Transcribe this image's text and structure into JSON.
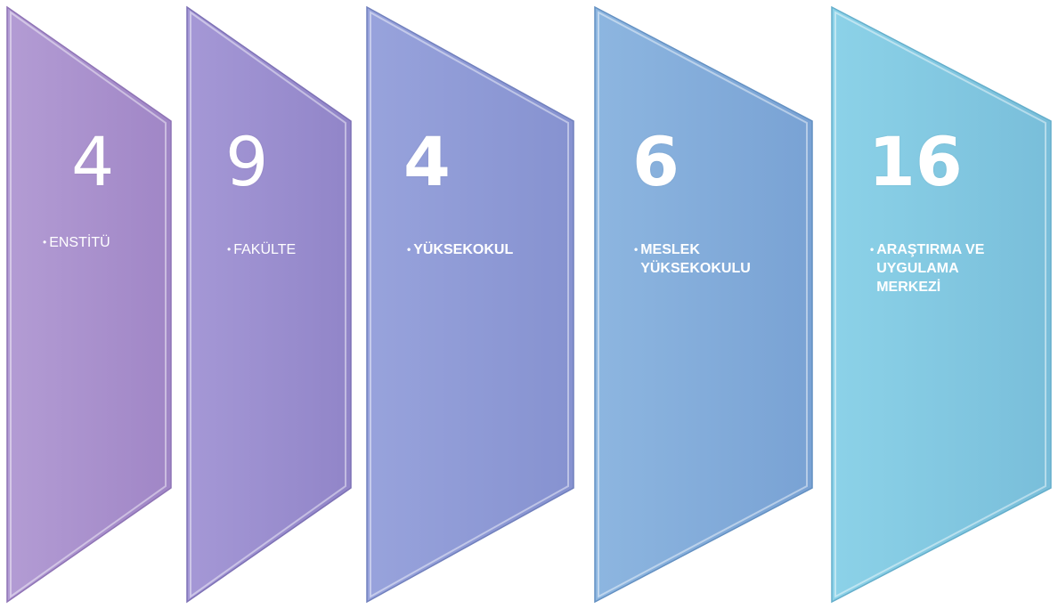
{
  "items": [
    {
      "count": "4",
      "label": "ENSTİTÜ",
      "color": "#A88DCB"
    },
    {
      "count": "9",
      "label": "FAKÜLTE",
      "color": "#998CCD"
    },
    {
      "count": "4",
      "label": "YÜKSEKOKUL",
      "color": "#8C97D4"
    },
    {
      "count": "6",
      "label": "MESLEK\nYÜKSEKOKULU",
      "color": "#7FA8D8"
    },
    {
      "count": "16",
      "label": "ARAŞTIRMA VE\nUYGULAMA\n  MERKEZİ",
      "color": "#7EC4DE"
    }
  ],
  "bullet_glyph": "•"
}
